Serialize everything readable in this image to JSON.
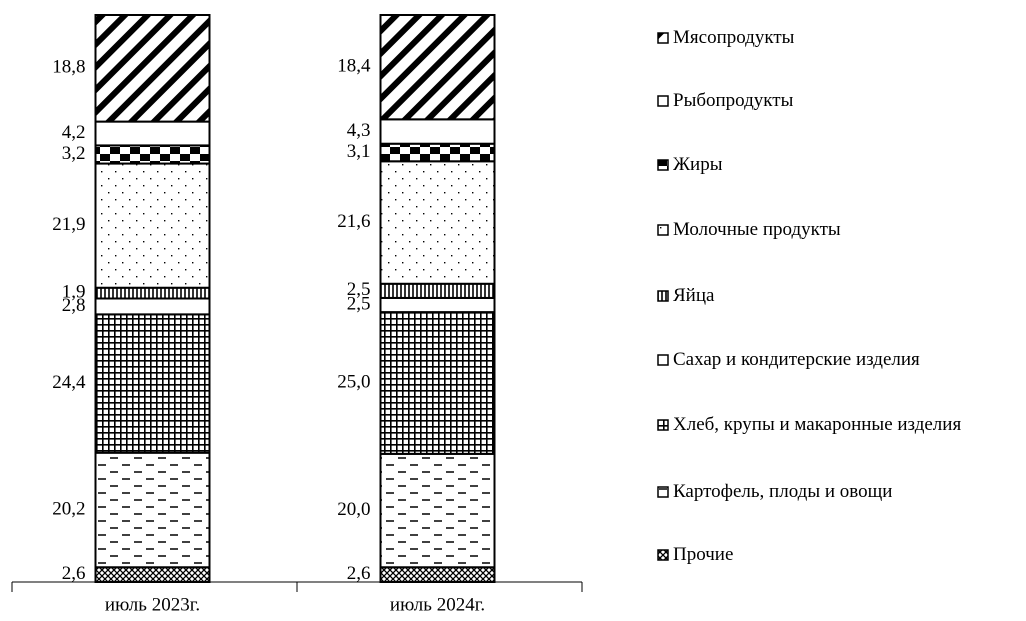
{
  "chart_data": {
    "type": "stacked_bar",
    "categories": [
      "июль 2023г.",
      "июль 2024г."
    ],
    "series": [
      {
        "name": "Прочие",
        "color": "#000000",
        "values": [
          2.6,
          2.6
        ],
        "value_labels": [
          "2,6",
          "2,6"
        ]
      },
      {
        "name": "Картофель, плоды и овощи",
        "color": "#000000",
        "values": [
          20.2,
          20.0
        ],
        "value_labels": [
          "20,2",
          "20,0"
        ]
      },
      {
        "name": "Хлеб, крупы и макаронные изделия",
        "color": "#000000",
        "values": [
          24.4,
          25.0
        ],
        "value_labels": [
          "24,4",
          "25,0"
        ]
      },
      {
        "name": "Сахар и кондитерские изделия",
        "color": "#000000",
        "values": [
          2.8,
          2.5
        ],
        "value_labels": [
          "2,8",
          "2,5"
        ]
      },
      {
        "name": "Яйца",
        "color": "#000000",
        "values": [
          1.9,
          2.5
        ],
        "value_labels": [
          "1,9",
          "2,5"
        ]
      },
      {
        "name": "Молочные продукты",
        "color": "#000000",
        "values": [
          21.9,
          21.6
        ],
        "value_labels": [
          "21,9",
          "21,6"
        ]
      },
      {
        "name": "Жиры",
        "color": "#000000",
        "values": [
          3.2,
          3.1
        ],
        "value_labels": [
          "3,2",
          "3,1"
        ]
      },
      {
        "name": "Рыбопродукты",
        "color": "#000000",
        "values": [
          4.2,
          4.3
        ],
        "value_labels": [
          "4,2",
          "4,3"
        ]
      },
      {
        "name": "Мясопродукты",
        "color": "#000000",
        "values": [
          18.8,
          18.4
        ],
        "value_labels": [
          "18,8",
          "18,4"
        ]
      }
    ]
  }
}
